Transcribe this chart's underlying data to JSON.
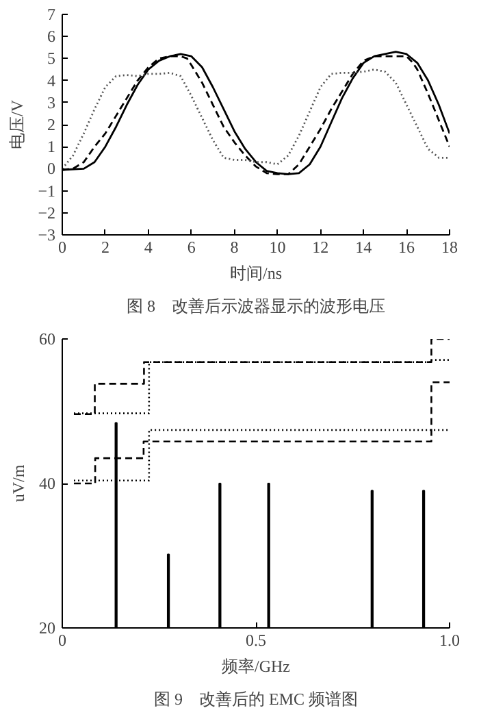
{
  "chart_data": [
    {
      "type": "line",
      "title": "图 8　改善后示波器显示的波形电压",
      "xlabel": "时间/ns",
      "ylabel": "电压/V",
      "xlim": [
        0,
        18
      ],
      "ylim": [
        -3,
        7
      ],
      "xticks": [
        0,
        2,
        4,
        6,
        8,
        10,
        12,
        14,
        16,
        18
      ],
      "yticks": [
        -3,
        -2,
        -1,
        0,
        1,
        2,
        3,
        4,
        5,
        6,
        7
      ],
      "grid": false,
      "series": [
        {
          "color": "#000000",
          "line_style": "solid",
          "x": [
            0,
            1,
            1.5,
            2,
            2.5,
            3,
            3.5,
            4,
            4.5,
            5,
            5.5,
            6,
            6.5,
            7,
            7.5,
            8,
            8.5,
            9,
            9.5,
            10,
            10.5,
            11,
            11.5,
            12,
            12.5,
            13,
            13.5,
            14,
            14.5,
            15,
            15.5,
            16,
            16.5,
            17,
            17.5,
            18
          ],
          "values": [
            -0.05,
            0.0,
            0.3,
            1.0,
            1.9,
            2.9,
            3.8,
            4.5,
            4.9,
            5.1,
            5.2,
            5.1,
            4.6,
            3.7,
            2.7,
            1.7,
            0.9,
            0.3,
            -0.1,
            -0.2,
            -0.25,
            -0.2,
            0.2,
            1.0,
            2.1,
            3.2,
            4.1,
            4.8,
            5.1,
            5.2,
            5.3,
            5.2,
            4.8,
            4.0,
            2.9,
            1.6
          ]
        },
        {
          "color": "#000000",
          "line_style": "dashed",
          "x": [
            0,
            0.5,
            1,
            1.5,
            2,
            2.5,
            3,
            3.5,
            4,
            4.5,
            5,
            5.5,
            5.8,
            6,
            6.5,
            7,
            7.5,
            8,
            8.5,
            9,
            9.5,
            10,
            10.5,
            11,
            11.5,
            12,
            12.5,
            13,
            13.5,
            14,
            14.5,
            15,
            16,
            16.3,
            16.5,
            17,
            17.5,
            18
          ],
          "values": [
            -0.05,
            0.0,
            0.3,
            1.0,
            1.6,
            2.4,
            3.2,
            4.0,
            4.6,
            5.0,
            5.1,
            5.1,
            5.0,
            4.7,
            3.9,
            2.9,
            1.9,
            1.2,
            0.6,
            0.1,
            -0.2,
            -0.25,
            -0.25,
            0.2,
            1.0,
            1.8,
            2.7,
            3.5,
            4.3,
            4.9,
            5.1,
            5.1,
            5.1,
            4.8,
            4.5,
            3.4,
            2.2,
            1.0
          ]
        },
        {
          "color": "#555555",
          "line_style": "dotted",
          "x": [
            0,
            0.5,
            1,
            1.5,
            2,
            2.5,
            3,
            3.5,
            4,
            4.5,
            5,
            5.5,
            6,
            6.5,
            7,
            7.5,
            8,
            8.5,
            9,
            9.5,
            10,
            10.5,
            11,
            11.5,
            12,
            12.5,
            13,
            13.5,
            14,
            14.5,
            15,
            15.5,
            16,
            16.5,
            17,
            17.5,
            18
          ],
          "values": [
            0.0,
            0.6,
            1.6,
            2.7,
            3.7,
            4.2,
            4.25,
            4.2,
            4.3,
            4.3,
            4.35,
            4.2,
            3.3,
            2.3,
            1.3,
            0.5,
            0.4,
            0.4,
            0.3,
            0.3,
            0.2,
            0.6,
            1.5,
            2.6,
            3.7,
            4.3,
            4.35,
            4.35,
            4.4,
            4.5,
            4.4,
            3.9,
            2.9,
            1.9,
            0.9,
            0.5,
            0.5
          ]
        }
      ]
    },
    {
      "type": "bar",
      "title": "图 9　改善后的 EMC 频谱图",
      "xlabel": "频率/GHz",
      "ylabel": "uV/m",
      "xlim": [
        0,
        1.0
      ],
      "ylim": [
        20,
        60
      ],
      "xticks": [
        0,
        0.5,
        {
          "value": 1.0,
          "label": "1.0"
        }
      ],
      "yticks": [
        20,
        40,
        60
      ],
      "grid": false,
      "series": [
        {
          "type": "bar",
          "color": "#000000",
          "x": [
            0.139,
            0.274,
            0.407,
            0.533,
            0.8,
            0.933
          ],
          "values": [
            48.4,
            30.2,
            40,
            40,
            39,
            39
          ]
        },
        {
          "type": "step",
          "color": "#000000",
          "line_style": "dotted",
          "x": [
            0.03,
            0.224,
            0.953,
            1.0
          ],
          "values": [
            49.7,
            56.8,
            57.1,
            57.1
          ]
        },
        {
          "type": "step",
          "color": "#000000",
          "line_style": "dashed",
          "x": [
            0.03,
            0.084,
            0.211,
            0.953,
            1.0
          ],
          "values": [
            49.6,
            53.8,
            56.8,
            60,
            60
          ]
        },
        {
          "type": "step",
          "color": "#000000",
          "line_style": "dotted",
          "x": [
            0.03,
            0.224,
            1.0
          ],
          "values": [
            40.4,
            47.4,
            47.4
          ]
        },
        {
          "type": "step",
          "color": "#000000",
          "line_style": "dashed",
          "x": [
            0.03,
            0.085,
            0.21,
            0.953,
            1.0
          ],
          "values": [
            40,
            43.5,
            45.8,
            54.0,
            54.0
          ]
        }
      ]
    }
  ]
}
